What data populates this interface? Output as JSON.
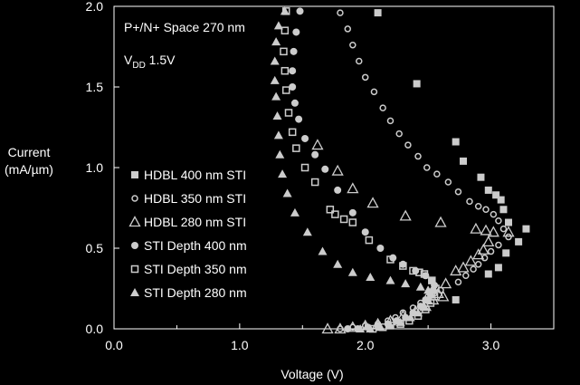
{
  "chart_data": {
    "type": "scatter",
    "title": "",
    "xlabel": "Voltage (V)",
    "ylabel": "Current",
    "ylabel_units": "(mA/µm)",
    "xlim": [
      0.0,
      3.5
    ],
    "ylim": [
      0.0,
      2.0
    ],
    "x_ticks": [
      "0.0",
      "1.0",
      "2.0",
      "3.0"
    ],
    "y_ticks": [
      "0.0",
      "0.5",
      "1.0",
      "1.5",
      "2.0"
    ],
    "grid": false,
    "legend_position": "left",
    "colors": {
      "background": "#000000",
      "foreground": "#ffffff"
    },
    "annotations": {
      "line1": "P+/N+ Space 270 nm",
      "line2_main": "V",
      "line2_sub": "DD",
      "line2_rest": " 1.5V"
    },
    "series": [
      {
        "name": "HDBL 400 nm STI",
        "marker": "filled-square",
        "points": [
          [
            2.1,
            1.96
          ],
          [
            2.41,
            1.52
          ],
          [
            2.72,
            1.16
          ],
          [
            2.78,
            1.04
          ],
          [
            2.92,
            0.94
          ],
          [
            2.98,
            0.86
          ],
          [
            3.04,
            0.83
          ],
          [
            3.08,
            0.8
          ],
          [
            3.1,
            0.74
          ],
          [
            3.14,
            0.66
          ],
          [
            3.28,
            0.62
          ],
          [
            3.22,
            0.54
          ],
          [
            3.12,
            0.47
          ],
          [
            3.06,
            0.38
          ],
          [
            2.98,
            0.34
          ],
          [
            2.72,
            0.18
          ]
        ]
      },
      {
        "name": "HDBL 350 nm STI",
        "marker": "open-circle",
        "points": [
          [
            1.8,
            1.96
          ],
          [
            1.86,
            1.86
          ],
          [
            1.9,
            1.76
          ],
          [
            1.95,
            1.66
          ],
          [
            2.0,
            1.56
          ],
          [
            2.07,
            1.47
          ],
          [
            2.14,
            1.37
          ],
          [
            2.2,
            1.29
          ],
          [
            2.27,
            1.21
          ],
          [
            2.34,
            1.14
          ],
          [
            2.42,
            1.07
          ],
          [
            2.49,
            1.0
          ],
          [
            2.57,
            0.96
          ],
          [
            2.66,
            0.91
          ],
          [
            2.74,
            0.85
          ],
          [
            2.83,
            0.79
          ],
          [
            2.9,
            0.76
          ],
          [
            2.96,
            0.74
          ],
          [
            3.02,
            0.71
          ],
          [
            3.06,
            0.67
          ],
          [
            3.1,
            0.62
          ],
          [
            3.14,
            0.57
          ],
          [
            3.06,
            0.52
          ],
          [
            3.0,
            0.48
          ],
          [
            2.95,
            0.44
          ],
          [
            2.9,
            0.4
          ],
          [
            2.86,
            0.37
          ],
          [
            2.8,
            0.33
          ],
          [
            2.74,
            0.29
          ],
          [
            2.6,
            0.24
          ],
          [
            2.55,
            0.22
          ],
          [
            2.5,
            0.2
          ],
          [
            2.44,
            0.16
          ],
          [
            2.38,
            0.13
          ],
          [
            2.3,
            0.1
          ],
          [
            2.24,
            0.07
          ],
          [
            2.18,
            0.05
          ],
          [
            2.1,
            0.03
          ],
          [
            2.0,
            0.02
          ],
          [
            1.9,
            0.01
          ],
          [
            1.8,
            0.0
          ]
        ]
      },
      {
        "name": "HDBL 280 nm STI",
        "marker": "open-triangle",
        "points": [
          [
            1.62,
            1.14
          ],
          [
            1.78,
            0.98
          ],
          [
            1.9,
            0.87
          ],
          [
            2.06,
            0.78
          ],
          [
            2.32,
            0.7
          ],
          [
            2.6,
            0.66
          ],
          [
            2.88,
            0.62
          ],
          [
            2.96,
            0.61
          ],
          [
            3.02,
            0.6
          ],
          [
            3.14,
            0.6
          ],
          [
            2.98,
            0.54
          ],
          [
            2.94,
            0.49
          ],
          [
            2.9,
            0.46
          ],
          [
            2.84,
            0.42
          ],
          [
            2.78,
            0.38
          ],
          [
            2.72,
            0.36
          ],
          [
            2.64,
            0.28
          ],
          [
            2.58,
            0.22
          ],
          [
            2.62,
            0.2
          ],
          [
            2.54,
            0.18
          ],
          [
            2.48,
            0.14
          ],
          [
            2.4,
            0.11
          ],
          [
            2.3,
            0.08
          ],
          [
            2.2,
            0.05
          ],
          [
            2.1,
            0.03
          ],
          [
            2.0,
            0.02
          ],
          [
            1.9,
            0.01
          ],
          [
            1.8,
            0.0
          ],
          [
            1.7,
            0.0
          ]
        ]
      },
      {
        "name": "STI Depth 400 nm",
        "marker": "filled-circle",
        "points": [
          [
            1.48,
            1.97
          ],
          [
            1.45,
            1.84
          ],
          [
            1.43,
            1.72
          ],
          [
            1.42,
            1.6
          ],
          [
            1.42,
            1.5
          ],
          [
            1.44,
            1.4
          ],
          [
            1.47,
            1.3
          ],
          [
            1.52,
            1.18
          ],
          [
            1.6,
            1.08
          ],
          [
            1.68,
            0.99
          ],
          [
            1.78,
            0.86
          ],
          [
            1.9,
            0.72
          ],
          [
            2.0,
            0.6
          ],
          [
            2.12,
            0.5
          ],
          [
            2.22,
            0.44
          ],
          [
            2.3,
            0.4
          ],
          [
            2.4,
            0.36
          ],
          [
            2.48,
            0.33
          ],
          [
            2.53,
            0.3
          ],
          [
            2.55,
            0.27
          ],
          [
            2.54,
            0.24
          ],
          [
            2.52,
            0.21
          ],
          [
            2.48,
            0.18
          ],
          [
            2.44,
            0.14
          ],
          [
            2.38,
            0.1
          ],
          [
            2.32,
            0.07
          ],
          [
            2.25,
            0.05
          ],
          [
            2.18,
            0.03
          ],
          [
            2.1,
            0.02
          ],
          [
            2.02,
            0.01
          ],
          [
            1.94,
            0.0
          ],
          [
            1.86,
            0.0
          ]
        ]
      },
      {
        "name": "STI Depth 350 nm",
        "marker": "open-square",
        "points": [
          [
            1.37,
            1.97
          ],
          [
            1.36,
            1.85
          ],
          [
            1.35,
            1.72
          ],
          [
            1.36,
            1.6
          ],
          [
            1.37,
            1.48
          ],
          [
            1.39,
            1.34
          ],
          [
            1.42,
            1.22
          ],
          [
            1.45,
            1.12
          ],
          [
            1.52,
            1.0
          ],
          [
            1.6,
            0.91
          ],
          [
            1.72,
            0.74
          ],
          [
            1.76,
            0.71
          ],
          [
            1.83,
            0.68
          ],
          [
            1.9,
            0.66
          ],
          [
            2.03,
            0.55
          ],
          [
            2.2,
            0.43
          ],
          [
            2.3,
            0.39
          ],
          [
            2.38,
            0.36
          ],
          [
            2.43,
            0.35
          ],
          [
            2.47,
            0.34
          ],
          [
            2.53,
            0.3
          ],
          [
            2.56,
            0.25
          ],
          [
            2.55,
            0.2
          ],
          [
            2.52,
            0.16
          ],
          [
            2.48,
            0.12
          ],
          [
            2.42,
            0.08
          ],
          [
            2.35,
            0.05
          ],
          [
            2.28,
            0.03
          ],
          [
            2.2,
            0.02
          ],
          [
            2.14,
            0.01
          ],
          [
            2.06,
            0.0
          ]
        ]
      },
      {
        "name": "STI Depth 280 nm",
        "marker": "filled-triangle",
        "points": [
          [
            1.36,
            1.97
          ],
          [
            1.31,
            1.88
          ],
          [
            1.29,
            1.78
          ],
          [
            1.28,
            1.66
          ],
          [
            1.28,
            1.54
          ],
          [
            1.29,
            1.44
          ],
          [
            1.3,
            1.32
          ],
          [
            1.31,
            1.2
          ],
          [
            1.32,
            1.08
          ],
          [
            1.34,
            0.96
          ],
          [
            1.38,
            0.84
          ],
          [
            1.44,
            0.72
          ],
          [
            1.54,
            0.6
          ],
          [
            1.66,
            0.48
          ],
          [
            1.78,
            0.4
          ],
          [
            1.9,
            0.35
          ],
          [
            2.04,
            0.32
          ],
          [
            2.2,
            0.3
          ],
          [
            2.32,
            0.28
          ],
          [
            2.44,
            0.26
          ],
          [
            2.5,
            0.24
          ],
          [
            2.52,
            0.21
          ],
          [
            2.5,
            0.18
          ],
          [
            2.47,
            0.14
          ],
          [
            2.42,
            0.1
          ],
          [
            2.36,
            0.07
          ],
          [
            2.28,
            0.04
          ],
          [
            2.2,
            0.02
          ],
          [
            2.12,
            0.01
          ],
          [
            2.04,
            0.0
          ],
          [
            1.96,
            0.0
          ]
        ]
      }
    ]
  }
}
